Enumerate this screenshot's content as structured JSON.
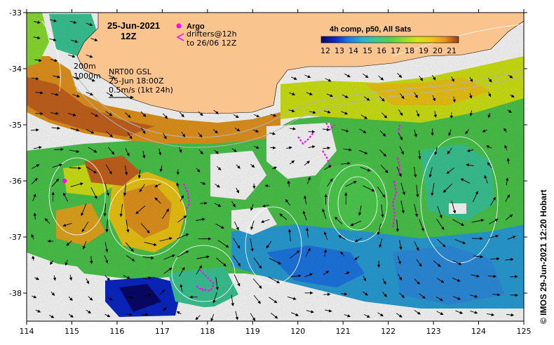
{
  "map": {
    "date": "25-Jun-2021",
    "hour": "12Z",
    "argo_label": "Argo",
    "drifters_line1": "drifters@12h",
    "drifters_line2": "to 26/06 12Z",
    "contour_200": "200m",
    "contour_1000": "1000m",
    "source_line1": "NRT00 GSL",
    "source_line2": "25-Jun 18:00Z",
    "scale_line": "0.5m/s (1kt 24h)",
    "colorbar_title": "4h comp, p50, All Sats",
    "colorbar_ticks": [
      "12",
      "13",
      "14",
      "15",
      "16",
      "17",
      "18",
      "19",
      "20",
      "21"
    ],
    "credit": "© IMOS 29-Jun-2021 12:20 Hobart",
    "lon_ticks": [
      "114",
      "115",
      "116",
      "117",
      "118",
      "119",
      "120",
      "121",
      "122",
      "123",
      "124",
      "125"
    ],
    "lat_ticks": [
      "-33",
      "-34",
      "-35",
      "-36",
      "-37",
      "-38"
    ],
    "lon_range": [
      114,
      125
    ],
    "lat_range": [
      -38.5,
      -33
    ],
    "colors": {
      "land": "#f9c48e",
      "argo": "#ff00ff",
      "drifter": "#ff00ff",
      "sst_scale": [
        "#08086b",
        "#0a28c8",
        "#1e78e6",
        "#28b4d2",
        "#3cc896",
        "#50d050",
        "#8ce032",
        "#d2e614",
        "#f0c814",
        "#e6961e",
        "#c8641e",
        "#963c14"
      ]
    }
  }
}
